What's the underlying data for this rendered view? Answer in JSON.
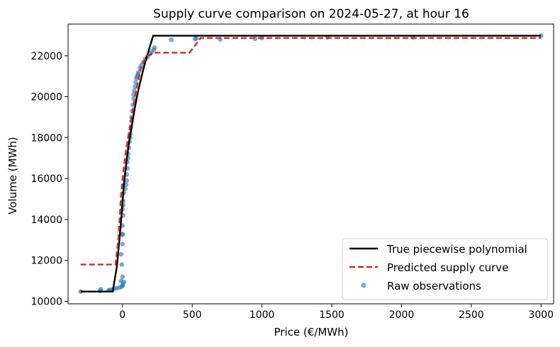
{
  "chart_data": {
    "type": "scatter",
    "title": "Supply curve comparison on 2024-05-27, at hour 16",
    "xlabel": "Price (€/MWh)",
    "ylabel": "Volume (MWh)",
    "xlim": [
      -390,
      3090
    ],
    "ylim": [
      9880,
      23550
    ],
    "xticks": [
      0,
      500,
      1000,
      1500,
      2000,
      2500,
      3000
    ],
    "yticks": [
      10000,
      12000,
      14000,
      16000,
      18000,
      20000,
      22000
    ],
    "legend_position": "lower-right",
    "colors": {
      "true": "#000000",
      "predicted": "#d62728",
      "raw": "#1f77b4"
    },
    "series": [
      {
        "name": "True piecewise polynomial",
        "kind": "line",
        "x": [
          -300,
          -70,
          -40,
          -10,
          10,
          30,
          50,
          70,
          90,
          110,
          130,
          150,
          170,
          190,
          220,
          260,
          500,
          1000,
          2000,
          3000
        ],
        "y": [
          10480,
          10480,
          11700,
          13900,
          15700,
          16900,
          17900,
          18700,
          19500,
          20200,
          20800,
          21350,
          21850,
          22300,
          22980,
          22980,
          22980,
          22980,
          22980,
          22980
        ]
      },
      {
        "name": "Predicted supply curve",
        "kind": "line",
        "x": [
          -300,
          -50,
          -30,
          -10,
          10,
          30,
          50,
          70,
          90,
          110,
          130,
          150,
          180,
          230,
          480,
          520,
          560,
          1000,
          2000,
          3000
        ],
        "y": [
          11800,
          11800,
          13000,
          15200,
          16600,
          17600,
          18400,
          19200,
          20000,
          20700,
          21300,
          21700,
          22000,
          22150,
          22150,
          22500,
          22870,
          22870,
          22870,
          22870
        ]
      },
      {
        "name": "Raw observations",
        "kind": "scatter",
        "points": [
          [
            -300,
            10480
          ],
          [
            -160,
            10520
          ],
          [
            -155,
            10590
          ],
          [
            -100,
            10540
          ],
          [
            -90,
            10560
          ],
          [
            -70,
            10580
          ],
          [
            -60,
            10620
          ],
          [
            -40,
            10650
          ],
          [
            -20,
            10680
          ],
          [
            -5,
            10720
          ],
          [
            0,
            10780
          ],
          [
            5,
            10850
          ],
          [
            10,
            10950
          ],
          [
            -10,
            11000
          ],
          [
            0,
            11200
          ],
          [
            -5,
            11800
          ],
          [
            -10,
            12300
          ],
          [
            0,
            12800
          ],
          [
            0,
            13250
          ],
          [
            0,
            13300
          ],
          [
            0,
            13700
          ],
          [
            5,
            14200
          ],
          [
            0,
            14500
          ],
          [
            5,
            14700
          ],
          [
            5,
            14900
          ],
          [
            10,
            15300
          ],
          [
            20,
            15500
          ],
          [
            25,
            15700
          ],
          [
            30,
            15900
          ],
          [
            30,
            16200
          ],
          [
            35,
            16500
          ],
          [
            35,
            16800
          ],
          [
            40,
            17000
          ],
          [
            40,
            17200
          ],
          [
            45,
            17500
          ],
          [
            50,
            17800
          ],
          [
            55,
            18000
          ],
          [
            55,
            18200
          ],
          [
            60,
            18500
          ],
          [
            65,
            18800
          ],
          [
            65,
            19000
          ],
          [
            70,
            19300
          ],
          [
            75,
            19600
          ],
          [
            80,
            19900
          ],
          [
            80,
            20100
          ],
          [
            85,
            20300
          ],
          [
            90,
            20500
          ],
          [
            95,
            20700
          ],
          [
            100,
            20900
          ],
          [
            105,
            21000
          ],
          [
            110,
            21100
          ],
          [
            115,
            21200
          ],
          [
            125,
            21400
          ],
          [
            135,
            21550
          ],
          [
            150,
            21700
          ],
          [
            165,
            21850
          ],
          [
            180,
            21950
          ],
          [
            200,
            22100
          ],
          [
            210,
            22200
          ],
          [
            225,
            22300
          ],
          [
            230,
            22400
          ],
          [
            350,
            22780
          ],
          [
            520,
            22820
          ],
          [
            530,
            22850
          ],
          [
            700,
            22800
          ],
          [
            950,
            22830
          ],
          [
            1000,
            22870
          ],
          [
            1470,
            22900
          ],
          [
            2080,
            22900
          ],
          [
            3000,
            22980
          ]
        ]
      }
    ]
  }
}
